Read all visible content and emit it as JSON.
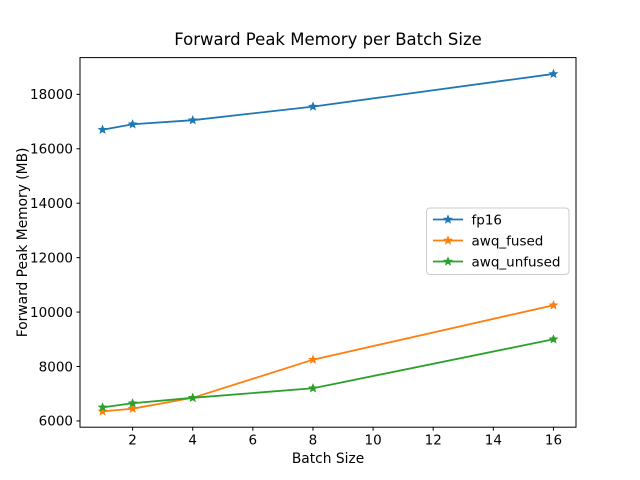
{
  "chart_data": {
    "type": "line",
    "title": "Forward Peak Memory per Batch Size",
    "xlabel": "Batch Size",
    "ylabel": "Forward Peak Memory (MB)",
    "x": [
      1,
      2,
      4,
      8,
      16
    ],
    "series": [
      {
        "name": "fp16",
        "color": "#1f77b4",
        "values": [
          16700,
          16900,
          17050,
          17550,
          18750
        ]
      },
      {
        "name": "awq_fused",
        "color": "#ff7f0e",
        "values": [
          6350,
          6450,
          6850,
          8250,
          10250
        ]
      },
      {
        "name": "awq_unfused",
        "color": "#2ca02c",
        "values": [
          6500,
          6650,
          6850,
          7200,
          9000
        ]
      }
    ],
    "marker": "star",
    "grid": false,
    "xticks": [
      2,
      4,
      6,
      8,
      10,
      12,
      14,
      16
    ],
    "yticks": [
      6000,
      8000,
      10000,
      12000,
      14000,
      16000,
      18000
    ],
    "xlim": [
      0.25,
      16.75
    ],
    "ylim": [
      5770,
      19350
    ],
    "legend": {
      "position": "center right",
      "border_color": "#cccccc",
      "entries": [
        "fp16",
        "awq_fused",
        "awq_unfused"
      ]
    },
    "background_color": "#ffffff",
    "spine_color": "#000000"
  }
}
